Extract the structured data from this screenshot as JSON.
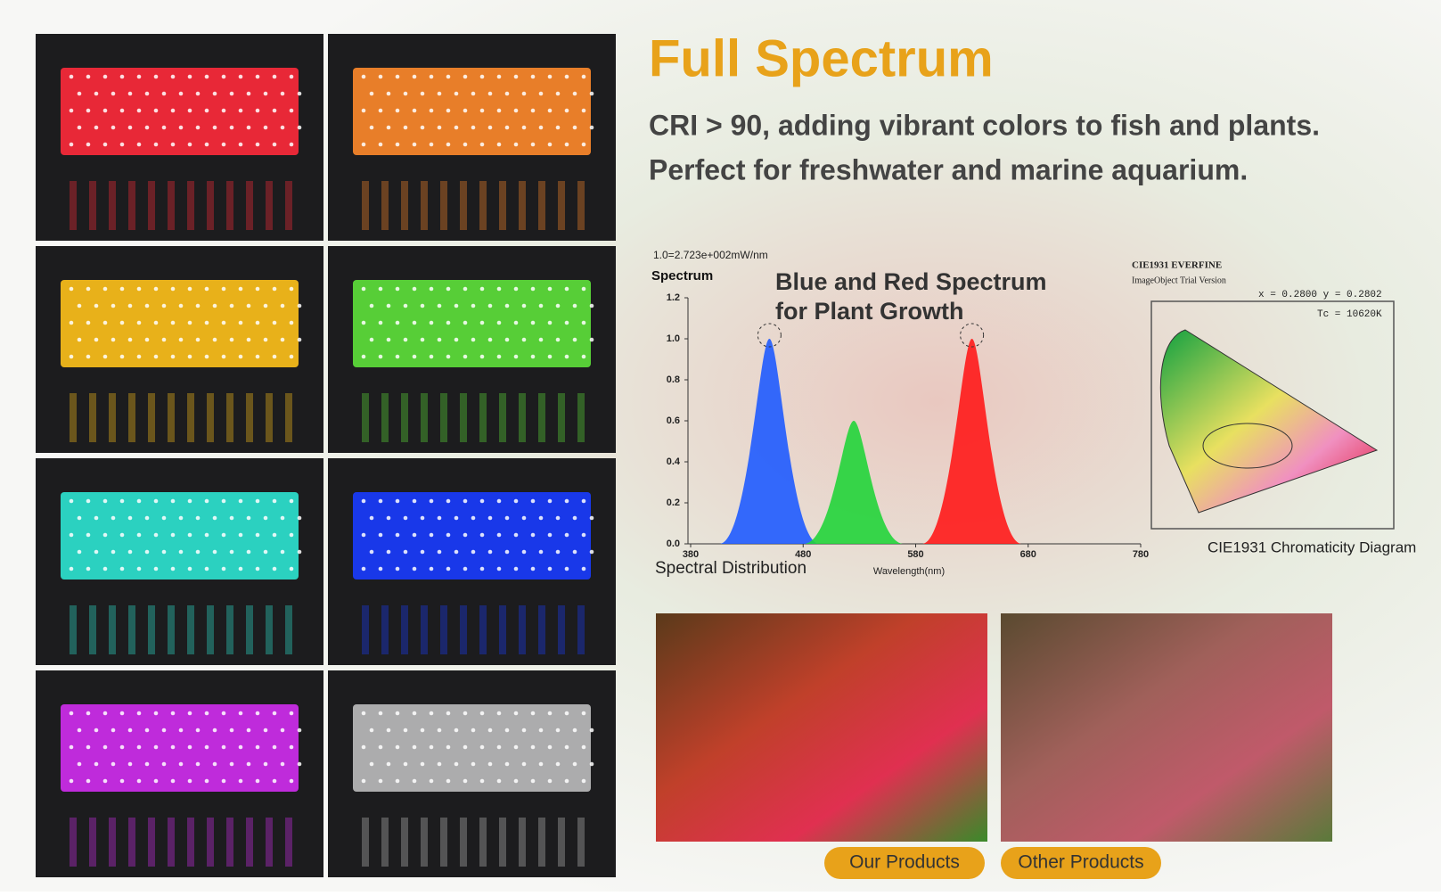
{
  "header": {
    "title": "Full Spectrum",
    "subtitle_lines": [
      "CRI > 90, adding vibrant colors to fish and plants.",
      "Perfect for freshwater and marine aquarium."
    ]
  },
  "led_panels": {
    "colors": [
      "#ff2a3a",
      "#ff8a2a",
      "#ffc21a",
      "#5ee23a",
      "#2ee6d2",
      "#1a3cff",
      "#d22ef0",
      "#bdbdbd"
    ]
  },
  "spectrum": {
    "unit_note": "1.0=2.723e+002mW/nm",
    "y_label": "Spectrum",
    "headline": [
      "Blue and Red Spectrum",
      "for Plant Growth"
    ],
    "ylim": [
      0,
      1.2
    ],
    "xlim": [
      380,
      780
    ],
    "yticks": [
      {
        "value": 0,
        "label": "0.0"
      },
      {
        "value": 0.2,
        "label": "0.2"
      },
      {
        "value": 0.4,
        "label": "0.4"
      },
      {
        "value": 0.6,
        "label": "0.6"
      },
      {
        "value": 0.8,
        "label": "0.8"
      },
      {
        "value": 1,
        "label": "1.0"
      },
      {
        "value": 1.2,
        "label": "1.2"
      }
    ],
    "xticks": [
      380,
      480,
      580,
      680,
      780
    ],
    "x_label": "Wavelength(nm)",
    "caption": "Spectral Distribution",
    "peaks": [
      {
        "x": 450,
        "y": 1.0,
        "color": "#1f5bff"
      },
      {
        "x": 525,
        "y": 0.6,
        "color": "#22d43a"
      },
      {
        "x": 630,
        "y": 1.0,
        "color": "#ff1a1a"
      }
    ]
  },
  "cie": {
    "header": [
      "CIE1931 EVERFINE",
      "ImageObject Trial Version"
    ],
    "coords": "x = 0.2800 y = 0.2802",
    "tc": "Tc = 10620K",
    "caption": "CIE1931 Chromaticity Diagram"
  },
  "comparison": {
    "labels": [
      "Our Products",
      "Other Products"
    ]
  }
}
